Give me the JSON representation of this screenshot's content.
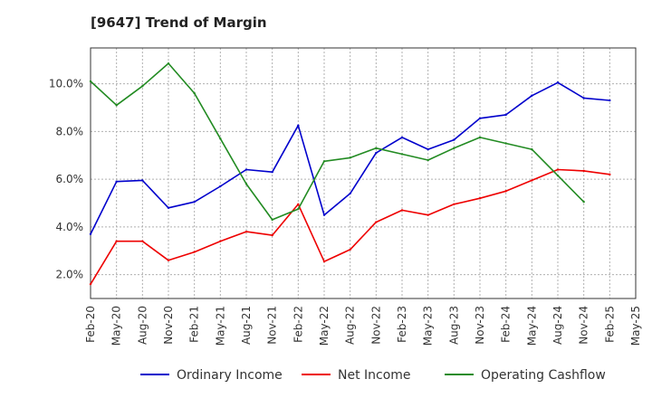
{
  "chart_data": {
    "type": "line",
    "title": "[9647]  Trend of Margin",
    "xlabel": "",
    "ylabel": "",
    "ylim": [
      1.0,
      11.5
    ],
    "x": [
      "Feb-20",
      "May-20",
      "Aug-20",
      "Nov-20",
      "Feb-21",
      "May-21",
      "Aug-21",
      "Nov-21",
      "Feb-22",
      "May-22",
      "Aug-22",
      "Nov-22",
      "Feb-23",
      "May-23",
      "Aug-23",
      "Nov-23",
      "Feb-24",
      "May-24",
      "Aug-24",
      "Nov-24",
      "Feb-25",
      "May-25"
    ],
    "y_ticks": [
      2.0,
      4.0,
      6.0,
      8.0,
      10.0
    ],
    "y_tick_labels": [
      "2.0%",
      "4.0%",
      "6.0%",
      "8.0%",
      "10.0%"
    ],
    "grid": true,
    "legend_position": "bottom",
    "series": [
      {
        "name": "Ordinary Income",
        "color": "#0000cc",
        "values": [
          3.7,
          5.9,
          5.95,
          4.8,
          5.05,
          5.7,
          6.4,
          6.3,
          8.25,
          4.5,
          5.4,
          7.1,
          7.75,
          7.25,
          7.65,
          8.55,
          8.7,
          9.5,
          10.05,
          9.4,
          9.3,
          null
        ]
      },
      {
        "name": "Net Income",
        "color": "#ee0000",
        "values": [
          1.6,
          3.4,
          3.4,
          2.6,
          2.95,
          3.4,
          3.8,
          3.65,
          4.95,
          2.55,
          3.05,
          4.2,
          4.7,
          4.5,
          4.95,
          5.2,
          5.5,
          5.95,
          6.4,
          6.35,
          6.2,
          null
        ]
      },
      {
        "name": "Operating Cashflow",
        "color": "#228b22",
        "values": [
          10.1,
          9.1,
          9.9,
          10.85,
          9.6,
          7.7,
          5.8,
          4.3,
          4.75,
          6.75,
          6.9,
          7.3,
          7.05,
          6.8,
          7.3,
          7.75,
          7.5,
          7.25,
          6.15,
          5.05,
          null,
          null
        ]
      }
    ]
  }
}
